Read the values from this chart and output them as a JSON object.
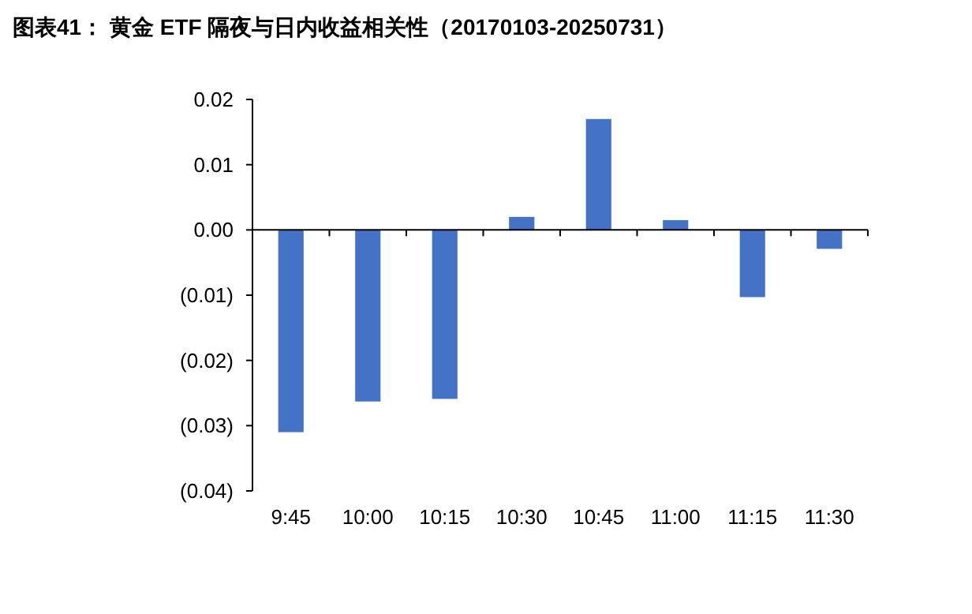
{
  "chart_data": {
    "type": "bar",
    "title": "图表41： 黄金 ETF 隔夜与日内收益相关性（20170103-20250731）",
    "categories": [
      "9:45",
      "10:00",
      "10:15",
      "10:30",
      "10:45",
      "11:00",
      "11:15",
      "11:30"
    ],
    "values": [
      -0.031,
      -0.0263,
      -0.0259,
      0.002,
      0.017,
      0.0015,
      -0.0103,
      -0.0029
    ],
    "color": "#4472c4",
    "ylim": [
      -0.04,
      0.02
    ],
    "yticks": [
      0.02,
      0.01,
      {
        "value": 0,
        "label": "0.00"
      },
      {
        "value": -0.01,
        "label": "(0.01)"
      },
      {
        "value": -0.02,
        "label": "(0.02)"
      },
      {
        "value": -0.03,
        "label": "(0.03)"
      },
      {
        "value": -0.04,
        "label": "(0.04)"
      }
    ]
  }
}
